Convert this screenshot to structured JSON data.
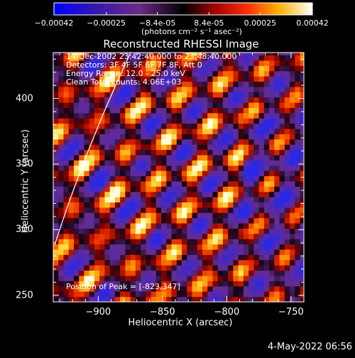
{
  "colorbar": {
    "ticks": [
      "-0.00042",
      "-0.00025",
      "-8.4e-05",
      "8.4e-05",
      "0.00025",
      "0.00042"
    ],
    "unit": "(photons cm⁻² s⁻¹ asec⁻²)",
    "range": [
      -0.00042,
      0.00042
    ]
  },
  "plot": {
    "title": "Reconstructed RHESSI Image",
    "info": [
      "14-Dec-2002 23:42:40.000 to 23:48:40.000",
      "Detectors: 3F 4F 5F 6F 7F 8F, Att 0",
      "Energy Range: 12.0 - 25.0 keV",
      "Clean     Total counts: 4.06E+03"
    ],
    "peak_text": "Position of Peak = [-823,347]",
    "footer_date": "4-May-2022 06:56"
  },
  "chart_data": {
    "type": "heatmap",
    "title": "Reconstructed RHESSI Image",
    "xlabel": "Heliocentric X (arcsec)",
    "ylabel": "Heliocentric Y (arcsec)",
    "xlim": [
      -935,
      -740
    ],
    "ylim": [
      245,
      435
    ],
    "xticks": [
      -900,
      -850,
      -800,
      -750
    ],
    "yticks": [
      250,
      300,
      350,
      400
    ],
    "xtick_labels": [
      "−900",
      "−850",
      "−800",
      "−750"
    ],
    "ytick_labels": [
      "250",
      "300",
      "350",
      "400"
    ],
    "colormap": "red-temperature (blue-purple negative, white positive)",
    "peak": [
      -823,
      347
    ],
    "pixel_size_arcsec": 4,
    "limb_line": "white solar limb curve at left edge"
  }
}
